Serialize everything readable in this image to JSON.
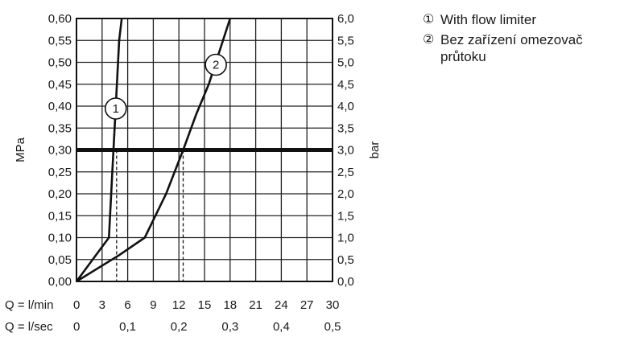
{
  "chart_data": {
    "type": "line",
    "x_rows": [
      {
        "axis_label": "Q = l/min",
        "ticks": [
          {
            "value": 0,
            "label": "0"
          },
          {
            "value": 3,
            "label": "3"
          },
          {
            "value": 6,
            "label": "6"
          },
          {
            "value": 9,
            "label": "9"
          },
          {
            "value": 12,
            "label": "12"
          },
          {
            "value": 15,
            "label": "15"
          },
          {
            "value": 18,
            "label": "18"
          },
          {
            "value": 21,
            "label": "21"
          },
          {
            "value": 24,
            "label": "24"
          },
          {
            "value": 27,
            "label": "27"
          },
          {
            "value": 30,
            "label": "30"
          }
        ]
      },
      {
        "axis_label": "Q = l/sec",
        "ticks": [
          {
            "value": 0,
            "label": "0"
          },
          {
            "value": 6,
            "label": "0,1"
          },
          {
            "value": 12,
            "label": "0,2"
          },
          {
            "value": 18,
            "label": "0,3"
          },
          {
            "value": 24,
            "label": "0,4"
          },
          {
            "value": 30,
            "label": "0,5"
          }
        ]
      }
    ],
    "xlim": [
      0,
      30
    ],
    "ylim": [
      0,
      0.6
    ],
    "ylabel_left": "MPa",
    "ylabel_right": "bar",
    "y_ticks_left": [
      "0,00",
      "0,05",
      "0,10",
      "0,15",
      "0,20",
      "0,25",
      "0,30",
      "0,35",
      "0,40",
      "0,45",
      "0,50",
      "0,55",
      "0,60"
    ],
    "y_ticks_right": [
      "0,0",
      "0,5",
      "1,0",
      "1,5",
      "2,0",
      "2,5",
      "3,0",
      "3,5",
      "4,0",
      "4,5",
      "5,0",
      "5,5",
      "6,0"
    ],
    "grid": true,
    "reference_line": {
      "y": 0.3
    },
    "series": [
      {
        "marker": "1",
        "x": [
          0,
          3.8,
          4.2,
          4.6,
          5.0,
          5.3
        ],
        "y": [
          0,
          0.1,
          0.25,
          0.4,
          0.55,
          0.6
        ],
        "dashed_drop_x": 4.7
      },
      {
        "marker": "2",
        "x": [
          0,
          5.0,
          8.0,
          10.5,
          12.5,
          14.0,
          15.5,
          17.0,
          18.0
        ],
        "y": [
          0,
          0.06,
          0.1,
          0.2,
          0.3,
          0.38,
          0.45,
          0.54,
          0.6
        ],
        "dashed_drop_x": 12.5
      }
    ],
    "legend": {
      "position": "top-right",
      "entries": [
        {
          "marker": "①",
          "label": "With flow limiter"
        },
        {
          "marker": "②",
          "label": "Bez zařízení omezovač průtoku"
        }
      ]
    }
  }
}
